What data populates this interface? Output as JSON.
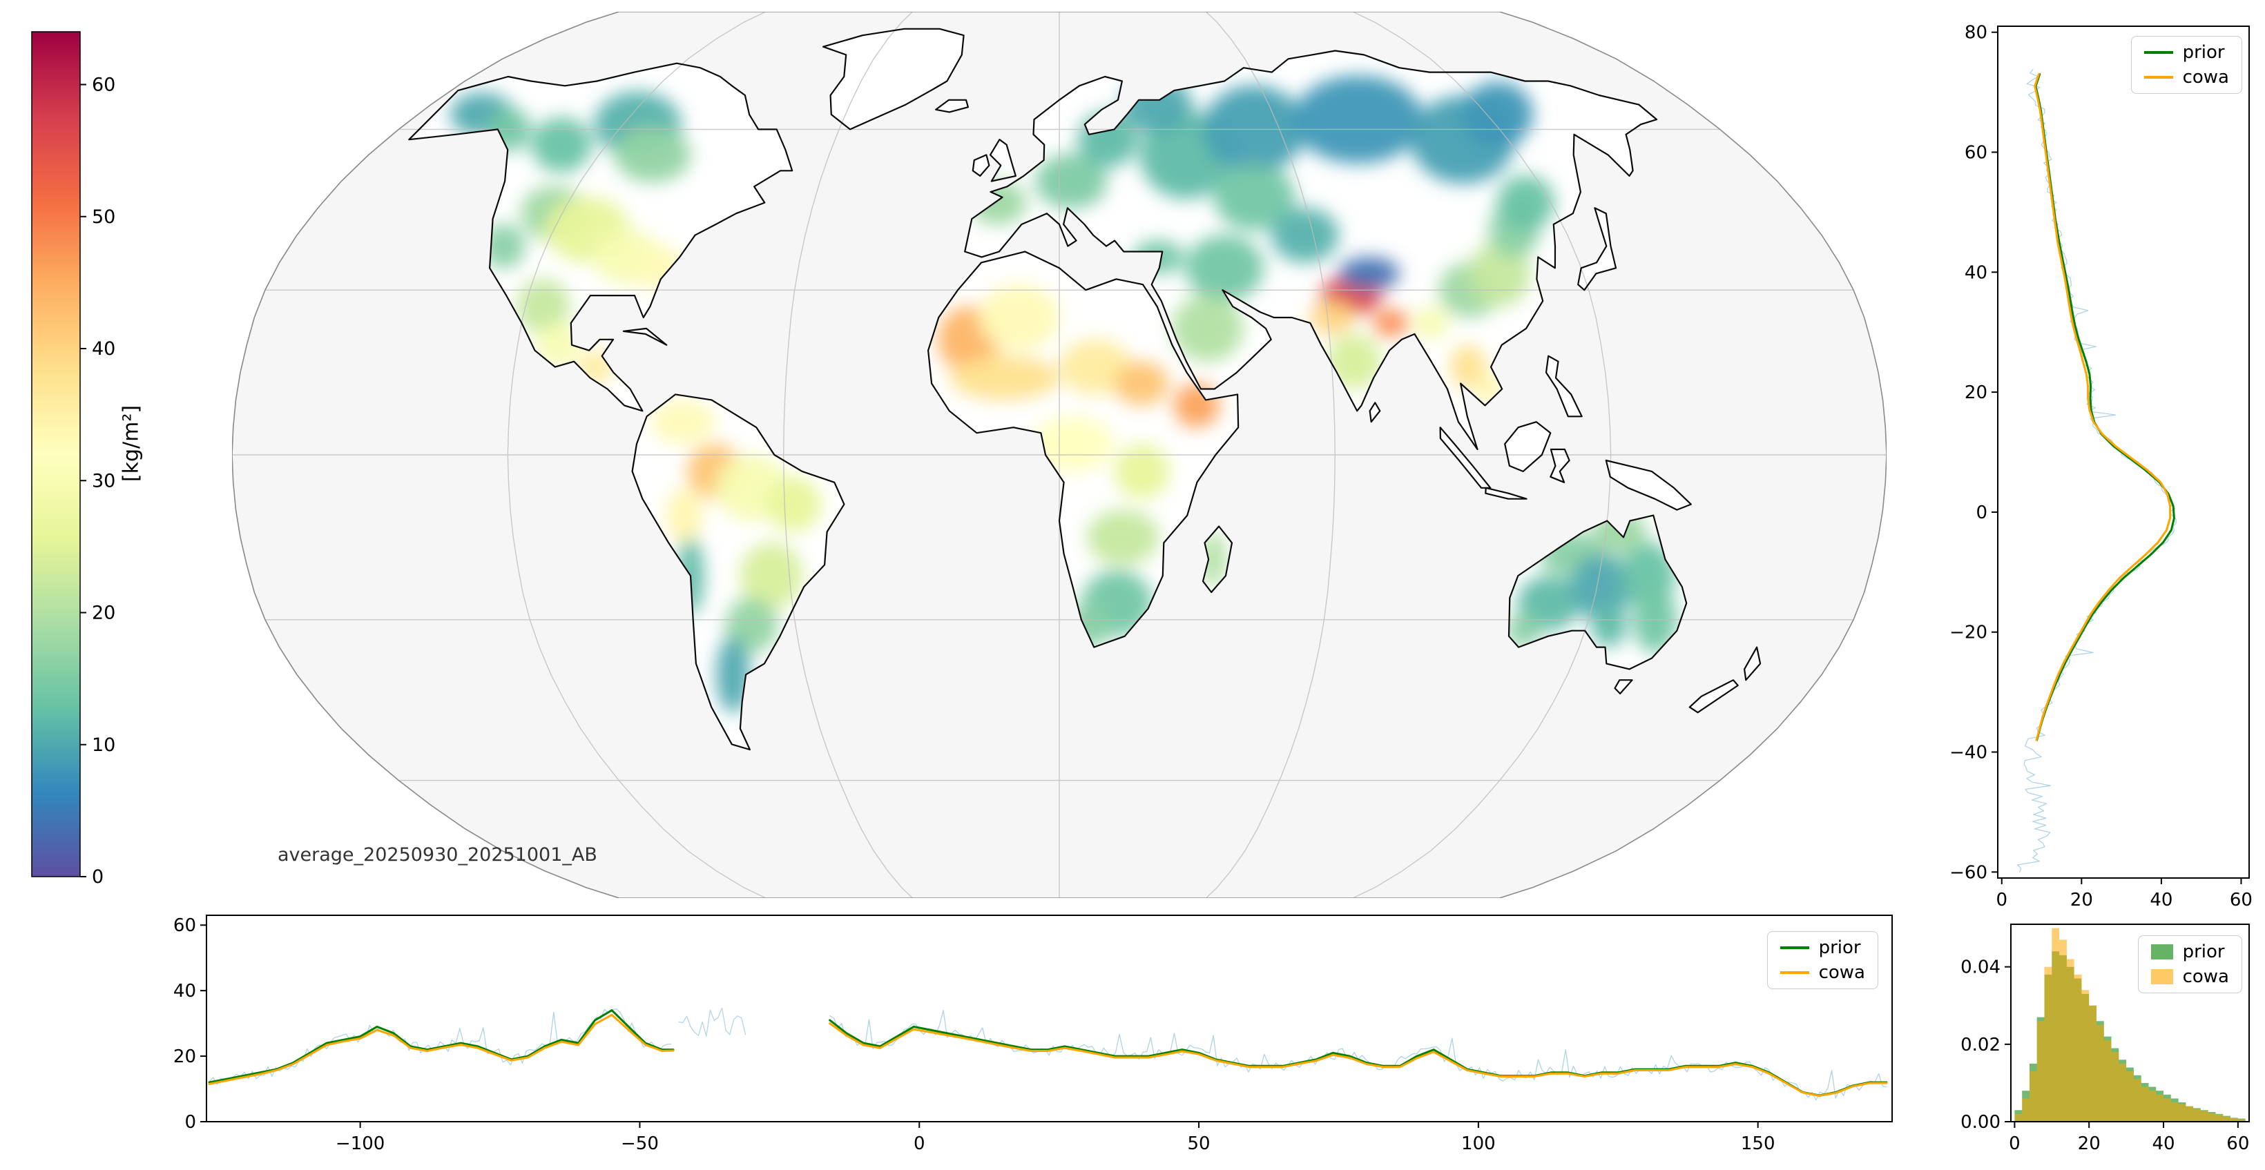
{
  "legend": {
    "prior": "prior",
    "cowa": "cowa"
  },
  "style": {
    "prior_color": "#008000",
    "cowa_color": "#ffa500",
    "noise_color": "#a6cee3",
    "ocean_color": "#f6f6f6",
    "land_color": "#ffffff",
    "coast_color": "#0a0a0a",
    "graticule_color": "#bdbdbd"
  },
  "chart_data": [
    {
      "id": "mean_field_map",
      "type": "heatmap",
      "title": "",
      "projection": "robinson-like",
      "center_lon": 12,
      "units": "kg/m^2",
      "annotation": "average_20250930_20251001_AB",
      "colorbar": {
        "label": "[kg/m²]",
        "vmin": 0,
        "vmax": 64,
        "ticks": [
          0,
          10,
          20,
          30,
          40,
          50,
          60
        ],
        "colors": [
          "#5e4fa2",
          "#3288bd",
          "#66c2a5",
          "#abdda4",
          "#e6f598",
          "#ffffbf",
          "#fee08b",
          "#fdae61",
          "#f46d43",
          "#d53e4f",
          "#9e0142"
        ]
      },
      "graticule": {
        "parallels": [
          -60,
          -30,
          0,
          30,
          60
        ],
        "meridians": [
          -168,
          -108,
          -48,
          12,
          72,
          132
        ]
      },
      "regions": [
        [
          -150,
          63,
          9,
          4,
          10
        ],
        [
          -138,
          60,
          6,
          4,
          14
        ],
        [
          -120,
          57,
          8,
          5,
          13
        ],
        [
          -104,
          61,
          12,
          6,
          11
        ],
        [
          -94,
          55,
          10,
          5,
          17
        ],
        [
          -110,
          44,
          8,
          5,
          18
        ],
        [
          -100,
          41,
          10,
          6,
          26
        ],
        [
          -88,
          36,
          8,
          5,
          30
        ],
        [
          -80,
          34,
          6,
          4,
          33
        ],
        [
          -118,
          38,
          5,
          4,
          16
        ],
        [
          -104,
          27,
          6,
          5,
          22
        ],
        [
          -99,
          20,
          5,
          4,
          30
        ],
        [
          -90,
          16,
          4,
          3,
          36
        ],
        [
          -70,
          6,
          7,
          4,
          33
        ],
        [
          -63,
          -3,
          6,
          5,
          42
        ],
        [
          -70,
          -11,
          4,
          5,
          34
        ],
        [
          -55,
          -6,
          8,
          6,
          30
        ],
        [
          -46,
          -9,
          6,
          5,
          26
        ],
        [
          -52,
          -22,
          7,
          6,
          24
        ],
        [
          -58,
          -31,
          6,
          5,
          17
        ],
        [
          -65,
          -40,
          4,
          7,
          10
        ],
        [
          -70,
          -22,
          3,
          7,
          12
        ],
        [
          -8,
          21,
          7,
          6,
          44
        ],
        [
          3,
          25,
          9,
          6,
          33
        ],
        [
          0,
          14,
          12,
          4,
          38
        ],
        [
          20,
          16,
          8,
          5,
          36
        ],
        [
          30,
          13,
          6,
          4,
          42
        ],
        [
          42,
          9,
          5,
          4,
          46
        ],
        [
          15,
          2,
          9,
          5,
          32
        ],
        [
          30,
          -3,
          6,
          5,
          26
        ],
        [
          26,
          -15,
          8,
          5,
          22
        ],
        [
          25,
          -27,
          8,
          6,
          14
        ],
        [
          19,
          -31,
          5,
          4,
          16
        ],
        [
          46,
          -19,
          3,
          5,
          20
        ],
        [
          -3,
          46,
          7,
          4,
          18
        ],
        [
          15,
          50,
          9,
          5,
          15
        ],
        [
          25,
          58,
          8,
          5,
          12
        ],
        [
          45,
          55,
          12,
          8,
          12
        ],
        [
          40,
          65,
          10,
          5,
          10
        ],
        [
          65,
          60,
          14,
          8,
          9
        ],
        [
          95,
          62,
          18,
          8,
          8
        ],
        [
          120,
          58,
          14,
          8,
          9
        ],
        [
          135,
          63,
          10,
          6,
          8
        ],
        [
          60,
          47,
          10,
          6,
          14
        ],
        [
          50,
          34,
          9,
          6,
          14
        ],
        [
          70,
          40,
          8,
          5,
          11
        ],
        [
          45,
          23,
          8,
          6,
          20
        ],
        [
          35,
          36,
          6,
          3,
          14
        ],
        [
          78,
          29,
          7,
          3.5,
          56
        ],
        [
          73,
          25,
          5,
          3,
          40
        ],
        [
          77,
          17,
          6,
          5,
          24
        ],
        [
          86,
          24,
          4,
          2.5,
          48
        ],
        [
          83,
          33,
          7,
          3,
          4
        ],
        [
          105,
          30,
          7,
          5,
          18
        ],
        [
          113,
          33,
          7,
          6,
          22
        ],
        [
          120,
          41,
          6,
          5,
          16
        ],
        [
          126,
          46,
          7,
          5,
          13
        ],
        [
          102,
          16,
          4,
          4,
          38
        ],
        [
          106,
          12,
          3,
          3,
          34
        ],
        [
          95,
          24,
          4,
          3,
          30
        ],
        [
          125,
          -18,
          7,
          4,
          16
        ],
        [
          135,
          -14,
          6,
          4,
          18
        ],
        [
          122,
          -27,
          7,
          5,
          12
        ],
        [
          133,
          -24,
          7,
          6,
          10
        ],
        [
          143,
          -22,
          6,
          6,
          13
        ],
        [
          147,
          -30,
          5,
          6,
          14
        ],
        [
          118,
          -32,
          4,
          3,
          16
        ],
        [
          137,
          -31,
          4,
          4,
          12
        ]
      ]
    },
    {
      "id": "zonal_mean_profile",
      "type": "line",
      "title": "",
      "xlabel": "",
      "ylabel": "",
      "orientation": "value_vs_latitude",
      "xlim": [
        -1,
        62
      ],
      "ylim": [
        -61,
        81
      ],
      "xticks": [
        0,
        20,
        40,
        60
      ],
      "yticks": [
        -60,
        -40,
        -20,
        0,
        20,
        40,
        60,
        80
      ],
      "latitude": [
        73,
        71,
        69,
        67,
        65,
        63,
        61,
        59,
        57,
        55,
        53,
        51,
        49,
        47,
        45,
        43,
        41,
        39,
        37,
        35,
        33,
        31,
        29,
        27,
        25,
        23,
        21,
        19,
        17,
        15,
        13,
        11,
        9,
        7,
        5,
        3,
        1,
        -1,
        -3,
        -5,
        -7,
        -9,
        -11,
        -13,
        -15,
        -17,
        -19,
        -21,
        -23,
        -25,
        -27,
        -29,
        -31,
        -33,
        -35,
        -37,
        -38
      ],
      "series": [
        {
          "name": "prior",
          "values": [
            9.5,
            8.5,
            9.2,
            9.8,
            10.2,
            10.6,
            11,
            11.4,
            11.8,
            12.2,
            12.6,
            13,
            13.4,
            13.9,
            14.4,
            15,
            15.6,
            16.2,
            16.8,
            17.3,
            17.8,
            18.4,
            19.2,
            20.2,
            21.2,
            22,
            22.3,
            22.2,
            22.4,
            23.2,
            25,
            28,
            32,
            36,
            39.5,
            41.8,
            43,
            43.2,
            42.5,
            40.5,
            37.5,
            34,
            30.5,
            27.5,
            25,
            22.8,
            21,
            19.3,
            17.6,
            16,
            14.6,
            13.3,
            12.1,
            11,
            10,
            9.2,
            8.8
          ]
        },
        {
          "name": "cowa",
          "values": [
            9.3,
            8.3,
            9,
            9.6,
            10,
            10.4,
            10.8,
            11.2,
            11.6,
            12,
            12.4,
            12.8,
            13.2,
            13.6,
            14,
            14.6,
            15.2,
            15.8,
            16.3,
            16.8,
            17.3,
            17.9,
            18.7,
            19.6,
            20.4,
            21.2,
            21.6,
            21.6,
            22,
            23,
            25.2,
            28.5,
            32.5,
            36.5,
            39.8,
            41.5,
            42.2,
            42.2,
            41.3,
            39.2,
            36.2,
            32.8,
            29.5,
            26.8,
            24.4,
            22.3,
            20.6,
            18.9,
            17.2,
            15.6,
            14.2,
            13,
            11.9,
            10.8,
            9.9,
            9.1,
            8.7
          ]
        }
      ]
    },
    {
      "id": "meridional_mean_profile",
      "type": "line",
      "title": "",
      "xlabel": "",
      "ylabel": "",
      "xlim": [
        -127.5,
        174
      ],
      "ylim": [
        0,
        63
      ],
      "xticks": [
        -100,
        -50,
        0,
        50,
        100,
        150
      ],
      "yticks": [
        0,
        20,
        40,
        60
      ],
      "segments": [
        {
          "lon": [
            -127,
            -124,
            -121,
            -118,
            -115,
            -112,
            -109,
            -106,
            -103,
            -100,
            -97,
            -94,
            -91,
            -88,
            -85,
            -82,
            -79,
            -76,
            -73,
            -70,
            -67,
            -64,
            -61,
            -58,
            -55,
            -52,
            -49,
            -46,
            -44
          ],
          "prior": [
            12,
            13,
            14,
            15,
            16,
            18,
            21,
            24,
            25,
            26,
            29,
            27,
            23,
            22,
            23,
            24,
            23,
            21,
            19,
            20,
            23,
            25,
            24,
            31,
            34,
            29,
            24,
            22,
            22
          ],
          "cowa": [
            11.5,
            12.5,
            13.5,
            14.5,
            15.7,
            17.6,
            20.5,
            23.4,
            24.5,
            25.4,
            28,
            26.3,
            22.5,
            21.6,
            22.6,
            23.5,
            22.5,
            20.6,
            18.7,
            19.6,
            22.5,
            24.4,
            23.4,
            29.8,
            32.6,
            28,
            23.5,
            21.6,
            21.7
          ]
        },
        {
          "lon": [
            -16,
            -13,
            -10,
            -7,
            -4,
            -1,
            2,
            5,
            8,
            11,
            14,
            17,
            20,
            23,
            26,
            29,
            32,
            35,
            38,
            41,
            44,
            47,
            50,
            53,
            56,
            59,
            62,
            65,
            68,
            71,
            74,
            77,
            80,
            83,
            86,
            89,
            92,
            95,
            98,
            101,
            104,
            107,
            110,
            113,
            116,
            119,
            122,
            125,
            128,
            131,
            134,
            137,
            140,
            143,
            146,
            149,
            152,
            155,
            158,
            161,
            164,
            167,
            170,
            173
          ],
          "prior": [
            31,
            27,
            24,
            23,
            26,
            29,
            28,
            27,
            26,
            25,
            24,
            23,
            22,
            22,
            23,
            22,
            21,
            20,
            20,
            20,
            21,
            22,
            21,
            19,
            18,
            17,
            17,
            17,
            18,
            19,
            21,
            20,
            18,
            17,
            17,
            20,
            22,
            19,
            16,
            15,
            14,
            14,
            14,
            15,
            15,
            14,
            15,
            15,
            16,
            16,
            16,
            17,
            17,
            17,
            18,
            17,
            15,
            12,
            9,
            8,
            9,
            11,
            12,
            12
          ],
          "cowa": [
            30,
            26.3,
            23.4,
            22.5,
            25.4,
            28.2,
            27.3,
            26.4,
            25.5,
            24.5,
            23.5,
            22.5,
            21.6,
            21.6,
            22.5,
            21.6,
            20.6,
            19.6,
            19.6,
            19.6,
            20.5,
            21.5,
            20.6,
            18.7,
            17.7,
            16.7,
            16.7,
            16.7,
            17.7,
            18.6,
            20.4,
            19.5,
            17.6,
            16.7,
            16.7,
            19.4,
            21.3,
            18.5,
            15.7,
            14.7,
            13.8,
            13.8,
            13.8,
            14.7,
            14.7,
            13.8,
            14.7,
            14.7,
            15.7,
            15.7,
            15.7,
            16.7,
            16.7,
            16.7,
            17.6,
            16.7,
            14.7,
            11.8,
            8.9,
            7.9,
            8.8,
            10.8,
            11.8,
            11.8
          ]
        }
      ]
    },
    {
      "id": "value_histogram",
      "type": "histogram",
      "title": "",
      "xlabel": "",
      "ylabel": "",
      "xlim": [
        -1,
        63
      ],
      "ylim": [
        0,
        0.051
      ],
      "xticks": [
        0,
        20,
        40,
        60
      ],
      "yticks": [
        0,
        0.02,
        0.04
      ],
      "bin_edges": [
        0,
        2,
        4,
        6,
        8,
        10,
        12,
        14,
        16,
        18,
        20,
        22,
        24,
        26,
        28,
        30,
        32,
        34,
        36,
        38,
        40,
        42,
        44,
        46,
        48,
        50,
        52,
        54,
        56,
        58,
        60,
        62
      ],
      "series": [
        {
          "name": "prior",
          "density": [
            0.003,
            0.008,
            0.015,
            0.027,
            0.038,
            0.044,
            0.043,
            0.04,
            0.037,
            0.033,
            0.03,
            0.026,
            0.022,
            0.019,
            0.016,
            0.014,
            0.012,
            0.01,
            0.009,
            0.008,
            0.007,
            0.006,
            0.005,
            0.004,
            0.0035,
            0.003,
            0.0025,
            0.002,
            0.0015,
            0.001,
            0.0008
          ]
        },
        {
          "name": "cowa",
          "density": [
            0.002,
            0.006,
            0.013,
            0.026,
            0.04,
            0.05,
            0.047,
            0.042,
            0.038,
            0.034,
            0.03,
            0.025,
            0.021,
            0.018,
            0.015,
            0.013,
            0.011,
            0.009,
            0.008,
            0.007,
            0.006,
            0.005,
            0.0045,
            0.004,
            0.0033,
            0.0028,
            0.0022,
            0.0018,
            0.0013,
            0.0009,
            0.0006
          ]
        }
      ]
    }
  ]
}
